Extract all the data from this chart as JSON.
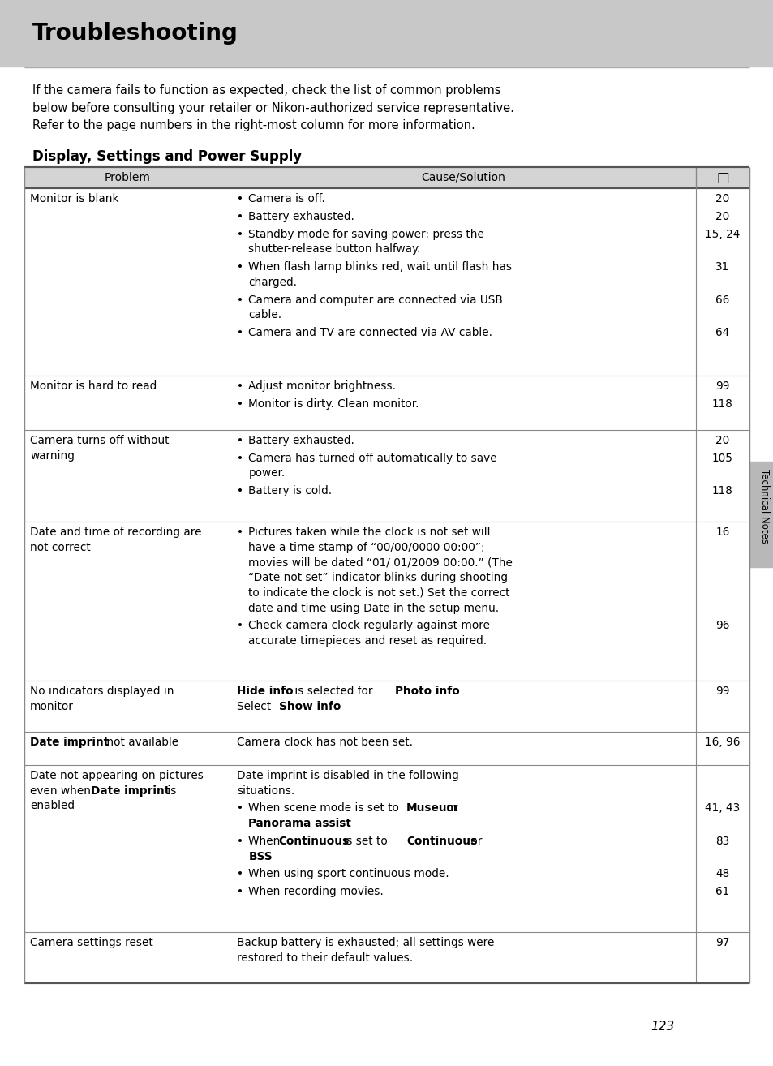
{
  "page_title": "Troubleshooting",
  "header_bg": "#c8c8c8",
  "intro_text": "If the camera fails to function as expected, check the list of common problems\nbelow before consulting your retailer or Nikon-authorized service representative.\nRefer to the page numbers in the right-most column for more information.",
  "section_title": "Display, Settings and Power Supply",
  "bg_color": "#ffffff",
  "text_color": "#000000",
  "table_header_bg": "#d4d4d4",
  "page_number": "123",
  "side_label": "Technical Notes",
  "rows": [
    {
      "problem": [
        {
          "t": "Monitor is blank",
          "b": false
        }
      ],
      "causes": [
        {
          "parts": [
            {
              "t": "Camera is off.",
              "b": false
            }
          ],
          "bullet": true,
          "page": "20"
        },
        {
          "parts": [
            {
              "t": "Battery exhausted.",
              "b": false
            }
          ],
          "bullet": true,
          "page": "20"
        },
        {
          "parts": [
            {
              "t": "Standby mode for saving power: press the\nshutter-release button halfway.",
              "b": false
            }
          ],
          "bullet": true,
          "page": "15, 24"
        },
        {
          "parts": [
            {
              "t": "When flash lamp blinks red, wait until flash has\ncharged.",
              "b": false
            }
          ],
          "bullet": true,
          "page": "31"
        },
        {
          "parts": [
            {
              "t": "Camera and computer are connected via USB\ncable.",
              "b": false
            }
          ],
          "bullet": true,
          "page": "66"
        },
        {
          "parts": [
            {
              "t": "Camera and TV are connected via AV cable.",
              "b": false
            }
          ],
          "bullet": true,
          "page": "64"
        }
      ]
    },
    {
      "problem": [
        {
          "t": "Monitor is hard to read",
          "b": false
        }
      ],
      "causes": [
        {
          "parts": [
            {
              "t": "Adjust monitor brightness.",
              "b": false
            }
          ],
          "bullet": true,
          "page": "99"
        },
        {
          "parts": [
            {
              "t": "Monitor is dirty. Clean monitor.",
              "b": false
            }
          ],
          "bullet": true,
          "page": "118"
        }
      ]
    },
    {
      "problem": [
        {
          "t": "Camera turns off without\nwarning",
          "b": false
        }
      ],
      "causes": [
        {
          "parts": [
            {
              "t": "Battery exhausted.",
              "b": false
            }
          ],
          "bullet": true,
          "page": "20"
        },
        {
          "parts": [
            {
              "t": "Camera has turned off automatically to save\npower.",
              "b": false
            }
          ],
          "bullet": true,
          "page": "105"
        },
        {
          "parts": [
            {
              "t": "Battery is cold.",
              "b": false
            }
          ],
          "bullet": true,
          "page": "118"
        }
      ]
    },
    {
      "problem": [
        {
          "t": "Date and time of recording are\nnot correct",
          "b": false
        }
      ],
      "causes": [
        {
          "parts": [
            {
              "t": "Pictures taken while the clock is not set will\nhave a time stamp of “00/00/0000 00:00”;\nmovies will be dated “01/ 01/2009 00:00.” (The\n“Date not set” indicator blinks during shooting\nto indicate the clock is not set.) Set the correct\ndate and time using Date in the setup menu.",
              "b": false
            }
          ],
          "bullet": true,
          "page": "16"
        },
        {
          "parts": [
            {
              "t": "Check camera clock regularly against more\naccurate timepieces and reset as required.",
              "b": false
            }
          ],
          "bullet": true,
          "page": "96"
        }
      ]
    },
    {
      "problem": [
        {
          "t": "No indicators displayed in\nmonitor",
          "b": false
        }
      ],
      "causes": [
        {
          "parts": [
            {
              "t": "Hide info",
              "b": true
            },
            {
              "t": " is selected for ",
              "b": false
            },
            {
              "t": "Photo info",
              "b": true
            },
            {
              "t": ".\nSelect ",
              "b": false
            },
            {
              "t": "Show info",
              "b": true
            },
            {
              "t": ".",
              "b": false
            }
          ],
          "bullet": false,
          "page": "99"
        }
      ]
    },
    {
      "problem": [
        {
          "t": "Date imprint",
          "b": true
        },
        {
          "t": " not available",
          "b": false
        }
      ],
      "causes": [
        {
          "parts": [
            {
              "t": "Camera clock has not been set.",
              "b": false
            }
          ],
          "bullet": false,
          "page": "16, 96"
        }
      ]
    },
    {
      "problem": [
        {
          "t": "Date not appearing on pictures\neven when ",
          "b": false
        },
        {
          "t": "Date imprint",
          "b": true
        },
        {
          "t": " is\nenabled",
          "b": false
        }
      ],
      "causes": [
        {
          "parts": [
            {
              "t": "Date imprint is disabled in the following\nsituations.",
              "b": false
            }
          ],
          "bullet": false,
          "page": ""
        },
        {
          "parts": [
            {
              "t": "When scene mode is set to ",
              "b": false
            },
            {
              "t": "Museum",
              "b": true
            },
            {
              "t": " or\n",
              "b": false
            },
            {
              "t": "Panorama assist",
              "b": true
            },
            {
              "t": ".",
              "b": false
            }
          ],
          "bullet": true,
          "page": "41, 43"
        },
        {
          "parts": [
            {
              "t": "When ",
              "b": false
            },
            {
              "t": "Continuous",
              "b": true
            },
            {
              "t": " is set to ",
              "b": false
            },
            {
              "t": "Continuous",
              "b": true
            },
            {
              "t": " or\n",
              "b": false
            },
            {
              "t": "BSS",
              "b": true
            },
            {
              "t": ".",
              "b": false
            }
          ],
          "bullet": true,
          "page": "83"
        },
        {
          "parts": [
            {
              "t": "When using sport continuous mode.",
              "b": false
            }
          ],
          "bullet": true,
          "page": "48"
        },
        {
          "parts": [
            {
              "t": "When recording movies.",
              "b": false
            }
          ],
          "bullet": true,
          "page": "61"
        }
      ]
    },
    {
      "problem": [
        {
          "t": "Camera settings reset",
          "b": false
        }
      ],
      "causes": [
        {
          "parts": [
            {
              "t": "Backup battery is exhausted; all settings were\nrestored to their default values.",
              "b": false
            }
          ],
          "bullet": false,
          "page": "97"
        }
      ]
    }
  ]
}
